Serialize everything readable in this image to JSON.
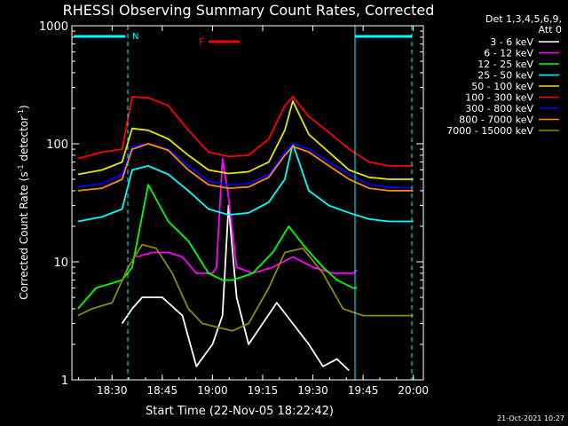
{
  "chart_data": {
    "type": "line",
    "title": "RHESSI Observing Summary Count Rates, Corrected",
    "xlabel_prefix": "Start Time (22-Nov-05 18:22:42)",
    "ylabel": "Corrected Count Rate (s",
    "ylabel_sup1": "-1",
    "ylabel_mid": " detector",
    "ylabel_sup2": "-1",
    "ylabel_end": ")",
    "ylim": [
      1,
      1000
    ],
    "yscale": "log",
    "xlim_minutes": [
      18.3,
      20.05
    ],
    "x_tick_labels": [
      "18:30",
      "18:45",
      "19:00",
      "19:15",
      "19:30",
      "19:45",
      "20:00"
    ],
    "x_tick_values_hours": [
      18.5,
      18.75,
      19.0,
      19.25,
      19.5,
      19.75,
      20.0
    ],
    "y_tick_labels": [
      "1",
      "10",
      "100",
      "1000"
    ],
    "y_tick_values": [
      1,
      10,
      100,
      1000
    ],
    "legend": {
      "header_line1": "Det 1,3,4,5,6,9,",
      "header_line2": "Att 0",
      "entries": [
        {
          "label": "3 - 6 keV",
          "color": "#ffffff"
        },
        {
          "label": "6 - 12 keV",
          "color": "#ff00ff"
        },
        {
          "label": "12 - 25 keV",
          "color": "#00ff00"
        },
        {
          "label": "25 - 50 keV",
          "color": "#00ffff"
        },
        {
          "label": "50 - 100 keV",
          "color": "#e6e600"
        },
        {
          "label": "100 - 300 keV",
          "color": "#ff0000"
        },
        {
          "label": "300 - 800 keV",
          "color": "#0000ff"
        },
        {
          "label": "800 - 7000 keV",
          "color": "#ff8c00"
        },
        {
          "label": "7000 - 15000 keV",
          "color": "#8b8b00"
        }
      ]
    },
    "annotations": {
      "flare_label": "F",
      "saa_label": "N",
      "footer_date": "21-Oct-2021 10:27"
    },
    "series": [
      {
        "name": "3 - 6 keV",
        "color": "#ffffff",
        "x": [
          18.55,
          18.6,
          18.65,
          18.75,
          18.85,
          18.92,
          19.0,
          19.05,
          19.08,
          19.12,
          19.18,
          19.25,
          19.32,
          19.4,
          19.48,
          19.55,
          19.62,
          19.68
        ],
        "y": [
          3,
          4,
          5,
          5,
          3.5,
          1.3,
          2,
          3.5,
          30,
          5,
          2,
          3,
          4.5,
          3,
          2,
          1.3,
          1.5,
          1.2
        ]
      },
      {
        "name": "6 - 12 keV",
        "color": "#ff00ff",
        "x": [
          18.62,
          18.7,
          18.78,
          18.85,
          18.92,
          19.0,
          19.02,
          19.05,
          19.08,
          19.12,
          19.2,
          19.3,
          19.4,
          19.5,
          19.6,
          19.7,
          19.72
        ],
        "y": [
          11,
          12,
          12,
          11,
          8,
          8,
          9,
          75,
          35,
          9,
          8,
          9,
          11,
          9,
          8,
          8,
          8.5
        ]
      },
      {
        "name": "12 - 25 keV",
        "color": "#00ff00",
        "x": [
          18.33,
          18.42,
          18.55,
          18.6,
          18.68,
          18.78,
          18.88,
          18.98,
          19.05,
          19.1,
          19.2,
          19.3,
          19.38,
          19.45,
          19.55,
          19.62,
          19.7,
          19.72
        ],
        "y": [
          4,
          6,
          7,
          9,
          45,
          22,
          15,
          8,
          7,
          7,
          8,
          12,
          20,
          14,
          9,
          7,
          6,
          6
        ]
      },
      {
        "name": "25 - 50 keV",
        "color": "#00ffff",
        "x": [
          18.33,
          18.45,
          18.55,
          18.6,
          18.68,
          18.78,
          18.88,
          18.98,
          19.08,
          19.18,
          19.28,
          19.36,
          19.4,
          19.48,
          19.58,
          19.68,
          19.78,
          19.88,
          20.0
        ],
        "y": [
          22,
          24,
          28,
          60,
          65,
          55,
          40,
          28,
          25,
          26,
          32,
          50,
          100,
          40,
          30,
          26,
          23,
          22,
          22
        ]
      },
      {
        "name": "50 - 100 keV",
        "color": "#e6e600",
        "x": [
          18.33,
          18.45,
          18.55,
          18.6,
          18.68,
          18.78,
          18.88,
          18.98,
          19.08,
          19.18,
          19.28,
          19.36,
          19.4,
          19.48,
          19.58,
          19.68,
          19.78,
          19.88,
          20.0
        ],
        "y": [
          55,
          60,
          70,
          135,
          130,
          110,
          80,
          60,
          56,
          58,
          70,
          130,
          230,
          120,
          85,
          60,
          52,
          50,
          50
        ]
      },
      {
        "name": "100 - 300 keV",
        "color": "#ff0000",
        "x": [
          18.33,
          18.45,
          18.55,
          18.6,
          18.68,
          18.78,
          18.88,
          18.98,
          19.08,
          19.18,
          19.28,
          19.36,
          19.4,
          19.48,
          19.58,
          19.68,
          19.78,
          19.88,
          20.0
        ],
        "y": [
          75,
          85,
          90,
          250,
          245,
          210,
          130,
          85,
          78,
          80,
          110,
          210,
          250,
          170,
          125,
          90,
          70,
          65,
          65
        ]
      },
      {
        "name": "300 - 800 keV",
        "color": "#0000ff",
        "x": [
          18.33,
          18.45,
          18.55,
          18.6,
          18.68,
          18.78,
          18.88,
          18.98,
          19.08,
          19.18,
          19.28,
          19.36,
          19.4,
          19.48,
          19.58,
          19.68,
          19.78,
          19.88,
          20.0
        ],
        "y": [
          43,
          46,
          55,
          95,
          100,
          90,
          65,
          48,
          45,
          46,
          55,
          85,
          100,
          90,
          70,
          55,
          45,
          43,
          42
        ]
      },
      {
        "name": "800 - 7000 keV",
        "color": "#ff8c00",
        "x": [
          18.33,
          18.45,
          18.55,
          18.6,
          18.68,
          18.78,
          18.88,
          18.98,
          19.08,
          19.18,
          19.28,
          19.36,
          19.4,
          19.48,
          19.58,
          19.68,
          19.78,
          19.88,
          20.0
        ],
        "y": [
          40,
          42,
          50,
          90,
          100,
          88,
          60,
          45,
          42,
          43,
          52,
          80,
          95,
          85,
          65,
          50,
          42,
          40,
          40
        ]
      },
      {
        "name": "7000 - 15000 keV",
        "color": "#8b8b00",
        "x": [
          18.33,
          18.4,
          18.5,
          18.58,
          18.65,
          18.72,
          18.8,
          18.88,
          18.95,
          19.02,
          19.1,
          19.18,
          19.28,
          19.36,
          19.45,
          19.55,
          19.65,
          19.75,
          19.85,
          20.0
        ],
        "y": [
          3.5,
          4,
          4.5,
          9,
          14,
          13,
          8,
          4,
          3,
          2.8,
          2.6,
          3,
          6,
          12,
          13,
          8,
          4,
          3.5,
          3.5,
          3.5
        ]
      }
    ]
  }
}
